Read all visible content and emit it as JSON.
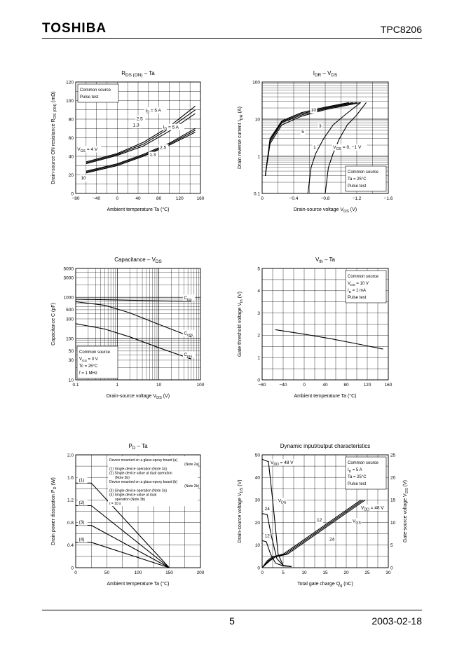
{
  "header": {
    "logo": "TOSHIBA",
    "part_number": "TPC8206"
  },
  "footer": {
    "page_number": "5",
    "date": "2003-02-18"
  },
  "chart_data": [
    {
      "id": "rds",
      "type": "line",
      "scale": "linear",
      "title": "R",
      "title_sub": "DS (ON)",
      "title_after": " – Ta",
      "ylabel_lines": [
        "Drain-source ON resistance",
        "R",
        "DS (ON)",
        "(mΩ)"
      ],
      "xlabel": "Ambient temperature    Ta    (°C)",
      "xlim": [
        -80,
        160
      ],
      "ylim": [
        0,
        120
      ],
      "xticks": [
        -80,
        -40,
        0,
        40,
        80,
        120,
        160
      ],
      "yticks": [
        0,
        20,
        40,
        60,
        80,
        100,
        120
      ],
      "legend": [
        "Common source",
        "Pulse test"
      ],
      "series": [
        {
          "x": [
            -60,
            0,
            50,
            100,
            150
          ],
          "y": [
            34,
            43,
            55,
            72,
            94
          ]
        },
        {
          "x": [
            -60,
            0,
            50,
            100,
            150
          ],
          "y": [
            33,
            42,
            53,
            70,
            90
          ]
        },
        {
          "x": [
            -60,
            0,
            50,
            100,
            150
          ],
          "y": [
            32,
            41,
            51,
            67,
            86
          ]
        },
        {
          "x": [
            -60,
            0,
            50,
            100,
            150
          ],
          "y": [
            24,
            32,
            42,
            54,
            70
          ]
        },
        {
          "x": [
            -60,
            0,
            50,
            100,
            150
          ],
          "y": [
            23,
            31,
            41,
            53,
            68
          ]
        },
        {
          "x": [
            -60,
            0,
            50,
            100,
            150
          ],
          "y": [
            22,
            30,
            40,
            52,
            66
          ]
        }
      ],
      "annotations": [
        {
          "text": "I",
          "sub": "D",
          "after": " = 5 A",
          "x": 54,
          "y": 88
        },
        {
          "text": "2.5",
          "x": 37,
          "y": 79
        },
        {
          "text": "1.3",
          "x": 30,
          "y": 72
        },
        {
          "text": "I",
          "sub": "D",
          "after": " = 5 A",
          "x": 88,
          "y": 70
        },
        {
          "text": "2.5",
          "x": 82,
          "y": 48
        },
        {
          "text": "1.3",
          "x": 62,
          "y": 40
        },
        {
          "text": "V",
          "sub": "GS",
          "after": " = 4 V",
          "x": -77,
          "y": 46
        },
        {
          "text": "10",
          "x": -70,
          "y": 15
        }
      ]
    },
    {
      "id": "idr",
      "type": "line",
      "scale": "log",
      "title": "I",
      "title_sub": "DR",
      "title_after": " – V",
      "title_sub2": "DS",
      "ylabel_lines": [
        "Drain reverse current",
        "I",
        "DR",
        "(A)"
      ],
      "xlabel": "Drain-source voltage    V",
      "xlabel_sub": "DS",
      "xlabel_after": "    (V)",
      "xlim": [
        0,
        -1.6
      ],
      "ylim": [
        0.1,
        100
      ],
      "xticks": [
        0,
        -0.4,
        -0.8,
        -1.2,
        -1.6
      ],
      "xticklabels": [
        "0",
        "−0.4",
        "−0.8",
        "−1.2",
        "−1.6"
      ],
      "yticks": [
        0.1,
        1,
        10,
        100
      ],
      "yticklabels": [
        "0.1",
        "1",
        "10",
        "100"
      ],
      "legend": [
        "Common source",
        "Ta = 25°C",
        "Pulse test"
      ],
      "series": [
        {
          "x": [
            -0.04,
            -0.1,
            -0.25,
            -0.5,
            -0.8,
            -1.1
          ],
          "y": [
            0.3,
            3,
            9,
            15,
            21,
            28
          ]
        },
        {
          "x": [
            -0.04,
            -0.1,
            -0.25,
            -0.5,
            -0.8,
            -1.15
          ],
          "y": [
            0.3,
            2.8,
            8.5,
            14,
            20,
            28
          ]
        },
        {
          "x": [
            -0.04,
            -0.1,
            -0.25,
            -0.5,
            -0.8,
            -1.2
          ],
          "y": [
            0.3,
            2.5,
            8,
            13,
            19,
            28
          ]
        },
        {
          "x": [
            -0.04,
            -0.1,
            -0.25,
            -0.5,
            -0.8,
            -1.25
          ],
          "y": [
            0.3,
            2.2,
            7,
            12,
            18,
            28
          ]
        },
        {
          "x": [
            -0.58,
            -0.62,
            -0.68,
            -0.78,
            -0.9,
            -1.05,
            -1.25
          ],
          "y": [
            0.1,
            0.5,
            1.2,
            3,
            7,
            13,
            28
          ]
        },
        {
          "x": [
            -0.8,
            -0.84,
            -0.9,
            -0.98,
            -1.08,
            -1.2,
            -1.32
          ],
          "y": [
            0.1,
            0.5,
            1.2,
            3,
            7,
            13,
            28
          ]
        }
      ],
      "annotations": [
        {
          "text": "10",
          "x": -0.62,
          "y": 16
        },
        {
          "text": "3",
          "x": -0.72,
          "y": 6
        },
        {
          "text": "5",
          "x": -0.5,
          "y": 4.2
        },
        {
          "text": "1",
          "x": -0.65,
          "y": 1.6
        },
        {
          "text": "V",
          "sub": "GS",
          "after": " = 0, −1 V",
          "x": -0.9,
          "y": 1.6
        }
      ]
    },
    {
      "id": "cap",
      "type": "line",
      "scale": "loglog",
      "title": "Capacitance – V",
      "title_sub": "DS",
      "ylabel_lines": [
        "Capacitance",
        "C",
        "(pF)"
      ],
      "xlabel": "Drain-source voltage    V",
      "xlabel_sub": "DS",
      "xlabel_after": "    (V)",
      "xlim": [
        0.1,
        100
      ],
      "ylim": [
        10,
        5000
      ],
      "xticks": [
        0.1,
        1,
        10,
        100
      ],
      "xticklabels": [
        "0.1",
        "1",
        "10",
        "100"
      ],
      "yticks": [
        10,
        30,
        50,
        100,
        300,
        500,
        1000,
        3000,
        5000
      ],
      "yticklabels": [
        "10",
        "30",
        "50",
        "100",
        "300",
        "500",
        "1000",
        "3000",
        "5000"
      ],
      "legend": [
        "Common source",
        "V_GS = 0 V",
        "Tc = 25°C",
        "f = 1 MHz"
      ],
      "series": [
        {
          "name": "Ciss",
          "x": [
            0.1,
            1,
            10,
            60
          ],
          "y": [
            900,
            860,
            820,
            800
          ]
        },
        {
          "name": "Coss",
          "x": [
            0.1,
            0.5,
            2,
            10,
            60
          ],
          "y": [
            780,
            640,
            420,
            220,
            110
          ]
        },
        {
          "name": "Crss",
          "x": [
            0.1,
            0.5,
            2,
            10,
            60
          ],
          "y": [
            230,
            170,
            110,
            60,
            32
          ]
        }
      ],
      "annotations": [
        {
          "text": "C",
          "sub": "iss",
          "x": 40,
          "y": 900
        },
        {
          "text": "C",
          "sub": "oss",
          "x": 40,
          "y": 125
        },
        {
          "text": "C",
          "sub": "rss",
          "x": 40,
          "y": 38
        }
      ]
    },
    {
      "id": "vth",
      "type": "line",
      "scale": "linear",
      "title": "V",
      "title_sub": "th",
      "title_after": " – Ta",
      "ylabel_lines": [
        "Gate threshold voltage",
        "V",
        "th",
        "(V)"
      ],
      "xlabel": "Ambient temperature    Ta    (°C)",
      "xlim": [
        -80,
        160
      ],
      "ylim": [
        0,
        5
      ],
      "xticks": [
        -80,
        -40,
        0,
        40,
        80,
        120,
        160
      ],
      "yticks": [
        0,
        1,
        2,
        3,
        4,
        5
      ],
      "legend": [
        "Common source",
        "V_DS = 10 V",
        "I_D = 1 mA",
        "Pulse test"
      ],
      "series": [
        {
          "x": [
            -55,
            0,
            50,
            100,
            150
          ],
          "y": [
            2.25,
            2.05,
            1.85,
            1.62,
            1.38
          ]
        }
      ],
      "annotations": []
    },
    {
      "id": "pd",
      "type": "line",
      "scale": "linear",
      "title": "P",
      "title_sub": "D",
      "title_after": " – Ta",
      "ylabel_lines": [
        "Drain power dissipation",
        "P",
        "D",
        "(W)"
      ],
      "xlabel": "Ambient temperature    Ta    (°C)",
      "xlim": [
        0,
        200
      ],
      "ylim": [
        0,
        2.0
      ],
      "xticks": [
        0,
        50,
        100,
        150,
        200
      ],
      "yticks": [
        0,
        0.4,
        0.8,
        1.2,
        1.6,
        2.0
      ],
      "yticklabels": [
        "0",
        "0.4",
        "0.8",
        "1.2",
        "1.6",
        "2.0"
      ],
      "notes": [
        "Device mounted on a glass-epoxy board (a)",
        "(Note 2a)",
        "(1) Single-device operation (Note 3a)",
        "(2) Single-device value at dual operation",
        "(Note 3b)",
        "Device mounted on a glass-epoxy board (b)",
        "(Note 2b)",
        "(3) Single-device operation (Note 3a)",
        "(4) Single-device value at dual",
        "operation (Note 3b)",
        "t = 10 s"
      ],
      "series": [
        {
          "name": "(1)",
          "x": [
            0,
            25,
            150
          ],
          "y": [
            1.5,
            1.5,
            0
          ]
        },
        {
          "name": "(2)",
          "x": [
            0,
            25,
            150
          ],
          "y": [
            1.1,
            1.1,
            0
          ]
        },
        {
          "name": "(3)",
          "x": [
            0,
            25,
            150
          ],
          "y": [
            0.75,
            0.75,
            0
          ]
        },
        {
          "name": "(4)",
          "x": [
            0,
            25,
            150
          ],
          "y": [
            0.45,
            0.45,
            0
          ]
        }
      ],
      "annotations": [
        {
          "text": "(1)",
          "x": 5,
          "y": 1.53
        },
        {
          "text": "(2)",
          "x": 5,
          "y": 1.13
        },
        {
          "text": "(3)",
          "x": 5,
          "y": 0.78
        },
        {
          "text": "(4)",
          "x": 5,
          "y": 0.48
        }
      ]
    },
    {
      "id": "dyn",
      "type": "line",
      "scale": "linear",
      "title": "Dynamic input/output characteristics",
      "ylabel_lines": [
        "Drain-source voltage",
        "V",
        "DS",
        "(V)"
      ],
      "y2label_lines": [
        "Gate-source voltage",
        "V",
        "GS",
        "(V)"
      ],
      "xlabel": "Total gate charge    Q",
      "xlabel_sub": "g",
      "xlabel_after": "    (nC)",
      "xlim": [
        0,
        30
      ],
      "ylim": [
        0,
        50
      ],
      "y2lim": [
        0,
        25
      ],
      "xticks": [
        0,
        5,
        10,
        15,
        20,
        25,
        30
      ],
      "yticks": [
        0,
        10,
        20,
        30,
        40,
        50
      ],
      "y2ticks": [
        0,
        5,
        10,
        15,
        20,
        25
      ],
      "legend": [
        "Common source",
        "I_D = 5 A",
        "Ta = 25°C",
        "Pulse test"
      ],
      "series": [
        {
          "name": "VDS 48",
          "axis": "y",
          "x": [
            0,
            1.5,
            2.5,
            3.8,
            5,
            7
          ],
          "y": [
            48,
            47,
            30,
            6,
            1,
            0.5
          ]
        },
        {
          "name": "VDS 24",
          "axis": "y",
          "x": [
            0,
            1.2,
            2.2,
            3.5,
            5,
            7
          ],
          "y": [
            24,
            23.5,
            14,
            4,
            1,
            0.5
          ]
        },
        {
          "name": "VDS 12",
          "axis": "y",
          "x": [
            0,
            1,
            2,
            3.2,
            5,
            7
          ],
          "y": [
            12,
            11.5,
            6,
            2,
            0.8,
            0.5
          ]
        },
        {
          "name": "VGS 48",
          "axis": "y2",
          "x": [
            0,
            1.8,
            3.2,
            6,
            24.5
          ],
          "y": [
            0,
            1.5,
            2.4,
            3,
            15
          ]
        },
        {
          "name": "VGS 24",
          "axis": "y2",
          "x": [
            0,
            1.5,
            2.8,
            5.5,
            24
          ],
          "y": [
            0,
            1.5,
            2.4,
            3,
            15
          ]
        },
        {
          "name": "VGS 12",
          "axis": "y2",
          "x": [
            0,
            1.2,
            2.4,
            5,
            23.5
          ],
          "y": [
            0,
            1.5,
            2.4,
            3,
            15
          ]
        }
      ],
      "annotations": [
        {
          "text": "V",
          "sub": "DD",
          "after": " = 48 V",
          "x": 2,
          "y": 46
        },
        {
          "text": "24",
          "x": 0.6,
          "y": 25.5
        },
        {
          "text": "12",
          "x": 0.6,
          "y": 13.5
        },
        {
          "text": "V",
          "sub": "DS",
          "x": 3.8,
          "y": 29
        },
        {
          "text": "12",
          "x": 13,
          "y": 20.5
        },
        {
          "text": "24",
          "x": 16,
          "y": 12
        },
        {
          "text": "V",
          "sub": "GS",
          "x": 21.5,
          "y": 20
        },
        {
          "text": "V",
          "sub": "DD",
          "after": " = 48 V",
          "x": 23.5,
          "y": 26
        }
      ]
    }
  ]
}
